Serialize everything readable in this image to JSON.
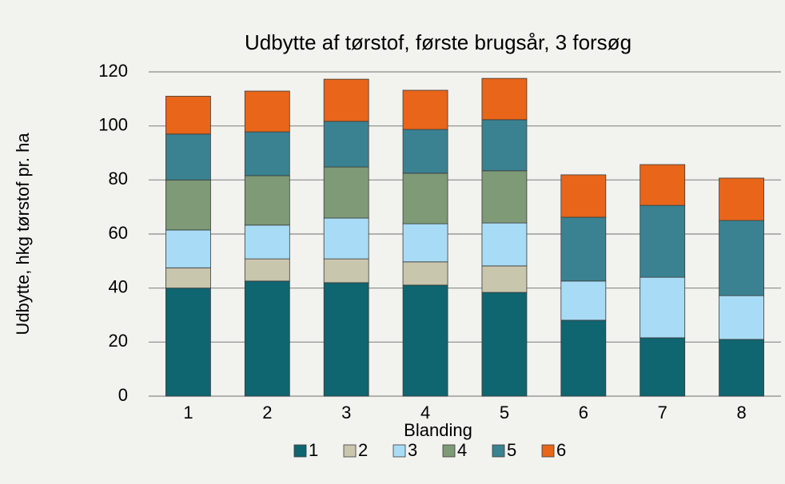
{
  "chart_data": {
    "type": "stacked_bar",
    "title": "Udbytte af tørstof, første brugsår, 3 forsøg",
    "xlabel": "Blanding",
    "ylabel": "Udbytte, hkg tørstof pr. ha",
    "categories": [
      "1",
      "2",
      "3",
      "4",
      "5",
      "6",
      "7",
      "8"
    ],
    "series": [
      {
        "name": "1",
        "color": "#0f6570",
        "values": [
          40,
          42.6,
          42,
          41.1,
          38.4,
          28.1,
          21.6,
          21
        ]
      },
      {
        "name": "2",
        "color": "#c9c6ae",
        "values": [
          7.5,
          8.2,
          8.8,
          8.6,
          9.8,
          0,
          0,
          0
        ]
      },
      {
        "name": "3",
        "color": "#a8dcf6",
        "values": [
          14,
          12.5,
          15.1,
          14.1,
          15.9,
          14.5,
          22.4,
          16.2
        ]
      },
      {
        "name": "4",
        "color": "#7e9a77",
        "values": [
          18.5,
          18.3,
          18.9,
          18.7,
          19.3,
          0,
          0,
          0
        ]
      },
      {
        "name": "5",
        "color": "#3a8291",
        "values": [
          17,
          16.2,
          16.9,
          16.2,
          18.9,
          23.6,
          26.6,
          27.8
        ]
      },
      {
        "name": "6",
        "color": "#e8651a",
        "values": [
          14,
          15.1,
          15.6,
          14.5,
          15.3,
          15.7,
          15.1,
          15.7
        ]
      }
    ],
    "ylim": [
      0,
      120
    ],
    "yticks": [
      0,
      20,
      40,
      60,
      80,
      100,
      120
    ],
    "grid": true,
    "legend": "bottom"
  }
}
